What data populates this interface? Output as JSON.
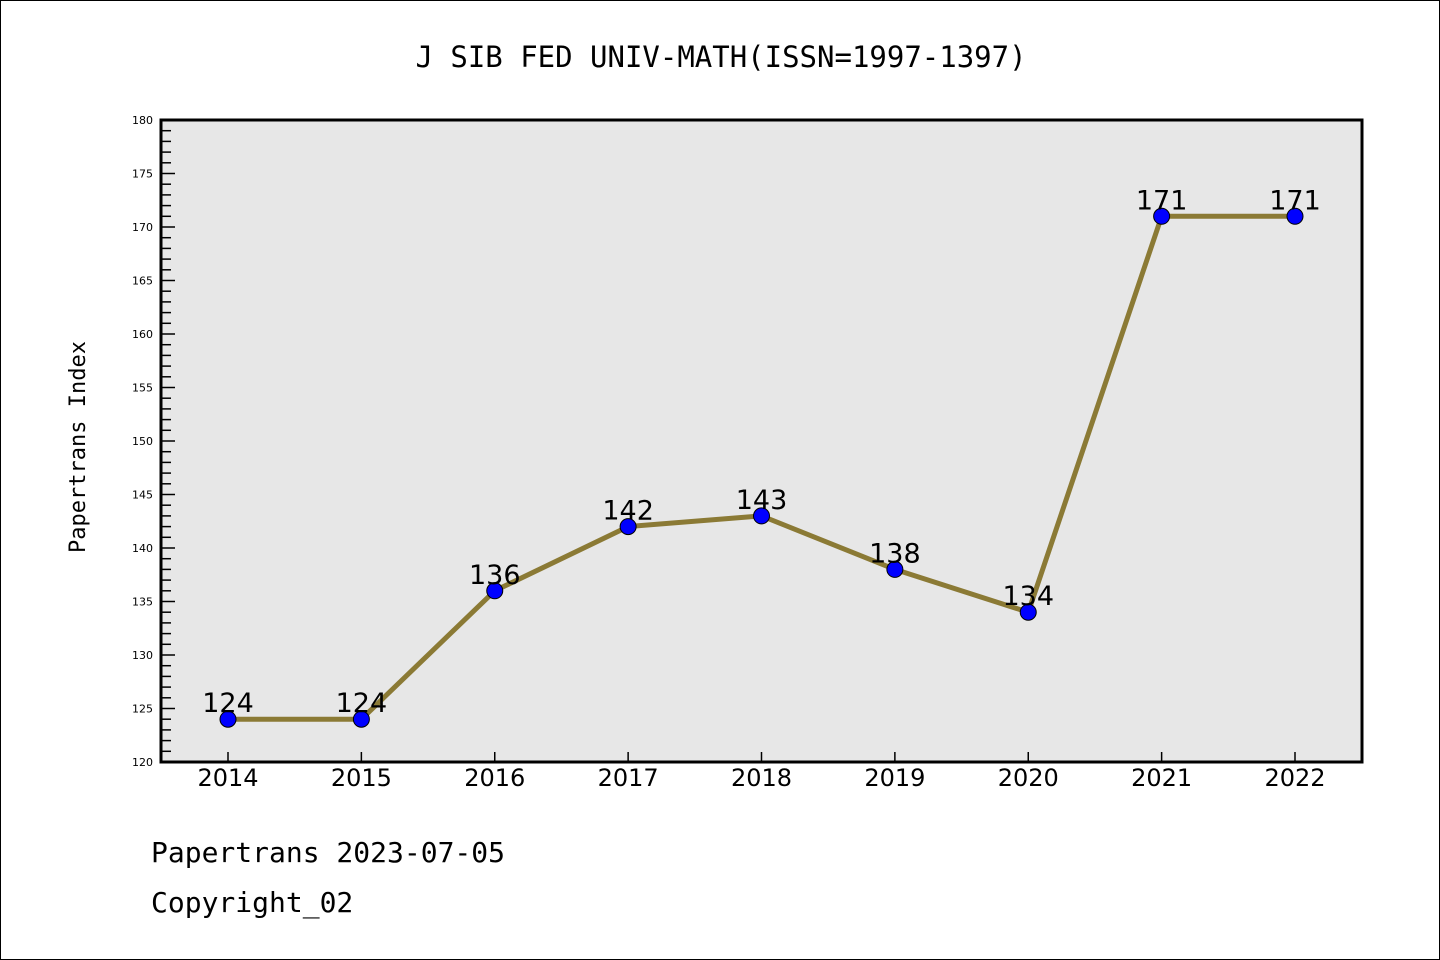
{
  "chart_data": {
    "type": "line",
    "title": "J SIB FED UNIV-MATH(ISSN=1997-1397)",
    "xlabel": "",
    "ylabel": "Papertrans Index",
    "categories": [
      "2014",
      "2015",
      "2016",
      "2017",
      "2018",
      "2019",
      "2020",
      "2021",
      "2022"
    ],
    "values": [
      124,
      124,
      136,
      142,
      143,
      138,
      134,
      171,
      171
    ],
    "ylim": [
      120,
      180
    ],
    "yticks": [
      120,
      125,
      130,
      135,
      140,
      145,
      150,
      155,
      160,
      165,
      170,
      175,
      180
    ],
    "grid": false,
    "line_color": "#8b7a35",
    "marker_color": "#0000ff",
    "plot_bg": "#e7e7e7"
  },
  "footer": {
    "line1": "Papertrans 2023-07-05",
    "line2": "Copyright_02"
  }
}
